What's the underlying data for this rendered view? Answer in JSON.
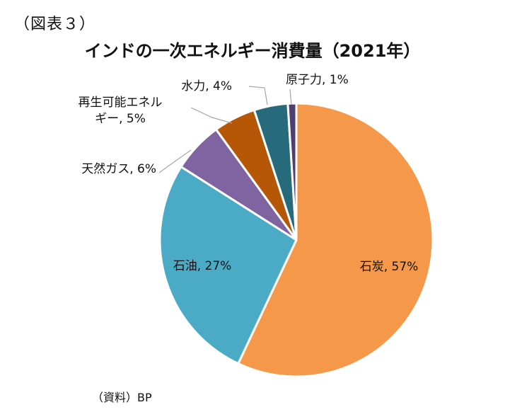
{
  "figure_label": "（図表３）",
  "source_note": "（資料）BP",
  "colors": {
    "coal": "#F5984A",
    "oil": "#4BABC6",
    "natural_gas": "#8064A2",
    "renewable": "#B65708",
    "hydro": "#276A7C",
    "nuclear": "#4E3E73",
    "slice_border": "#ffffff",
    "leader_line": "#A6A6A6"
  },
  "chart_data": {
    "type": "pie",
    "title": "インドの一次エネルギー消費量（2021年）",
    "start_angle_deg": 0,
    "direction": "clockwise",
    "legend": "none",
    "slices": [
      {
        "id": "coal",
        "label": "石炭",
        "value": 57,
        "display": "石炭, 57%",
        "label_lines": [
          "石炭, 57%"
        ],
        "label_inside": true
      },
      {
        "id": "oil",
        "label": "石油",
        "value": 27,
        "display": "石油, 27%",
        "label_lines": [
          "石油, 27%"
        ],
        "label_inside": true
      },
      {
        "id": "natural_gas",
        "label": "天然ガス",
        "value": 6,
        "display": "天然ガス, 6%",
        "label_lines": [
          "天然ガス, 6%"
        ],
        "label_inside": false
      },
      {
        "id": "renewable",
        "label": "再生可能エネルギー",
        "value": 5,
        "display": "再生可能エネルギー, 5%",
        "label_lines": [
          "再生可能エネル",
          "ギー, 5%"
        ],
        "label_inside": false
      },
      {
        "id": "hydro",
        "label": "水力",
        "value": 4,
        "display": "水力, 4%",
        "label_lines": [
          "水力, 4%"
        ],
        "label_inside": false
      },
      {
        "id": "nuclear",
        "label": "原子力",
        "value": 1,
        "display": "原子力, 1%",
        "label_lines": [
          "原子力, 1%"
        ],
        "label_inside": false
      }
    ]
  }
}
